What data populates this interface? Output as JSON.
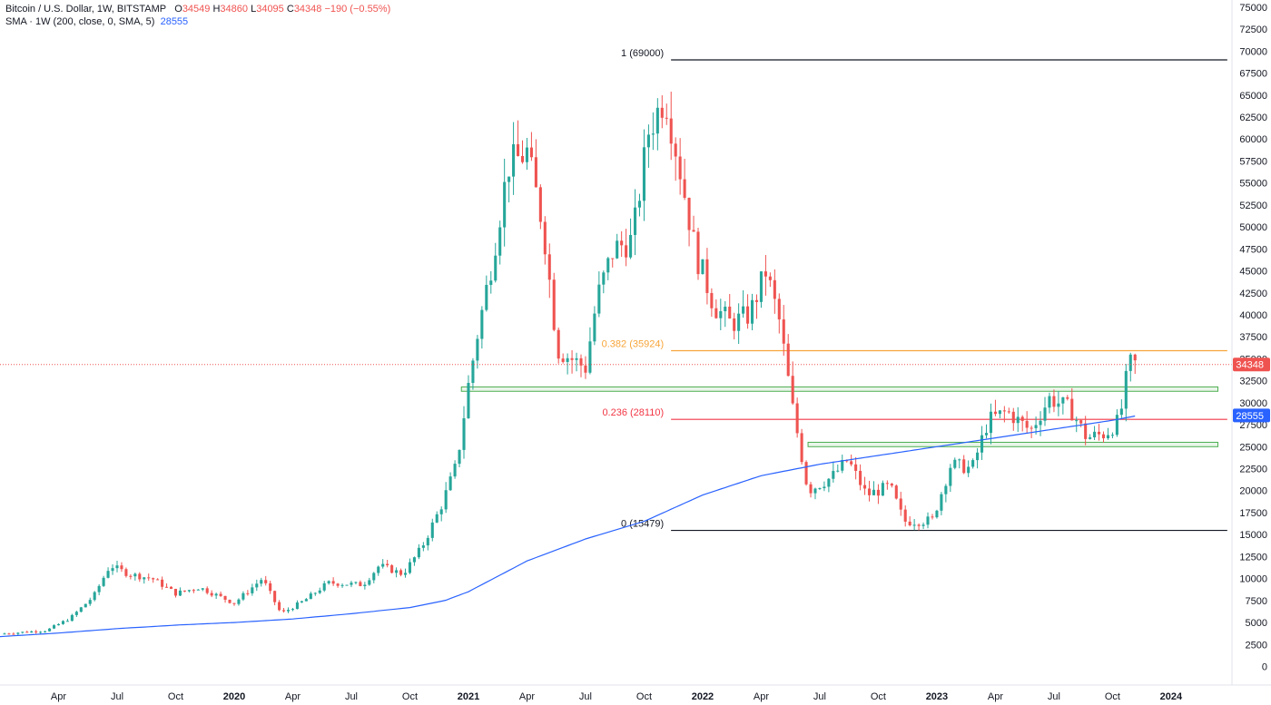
{
  "legend": {
    "symbol": "Bitcoin / U.S. Dollar, 1W, BITSTAMP",
    "open_label": "O",
    "open": "34549",
    "high_label": "H",
    "high": "34860",
    "low_label": "L",
    "low": "34095",
    "close_label": "C",
    "close": "34348",
    "change": "−190 (−0.55%)",
    "sma_label": "SMA · 1W (200, close, 0, SMA, 5)",
    "sma_value": "28555"
  },
  "badges": {
    "price": "34348",
    "sma": "28555"
  },
  "colors": {
    "up": "#26a69a",
    "down": "#ef5350",
    "sma": "#2962ff",
    "fib_0382": "#f7a539",
    "fib_0236": "#f23645",
    "fib_edge": "#131722",
    "zone": "#4caf50",
    "price_line": "#ef5350"
  },
  "chart_data": {
    "type": "candlestick",
    "ylim": [
      -1000,
      76500
    ],
    "y_ticks": [
      0,
      2500,
      5000,
      7500,
      10000,
      12500,
      15000,
      17500,
      20000,
      22500,
      25000,
      27500,
      30000,
      32500,
      35000,
      37500,
      40000,
      42500,
      45000,
      47500,
      50000,
      52500,
      55000,
      57500,
      60000,
      62500,
      65000,
      67500,
      70000,
      72500,
      75000
    ],
    "x_ticks": [
      {
        "label": "Apr",
        "t": 2019.25,
        "bold": false
      },
      {
        "label": "Jul",
        "t": 2019.5,
        "bold": false
      },
      {
        "label": "Oct",
        "t": 2019.75,
        "bold": false
      },
      {
        "label": "2020",
        "t": 2020.0,
        "bold": true
      },
      {
        "label": "Apr",
        "t": 2020.25,
        "bold": false
      },
      {
        "label": "Jul",
        "t": 2020.5,
        "bold": false
      },
      {
        "label": "Oct",
        "t": 2020.75,
        "bold": false
      },
      {
        "label": "2021",
        "t": 2021.0,
        "bold": true
      },
      {
        "label": "Apr",
        "t": 2021.25,
        "bold": false
      },
      {
        "label": "Jul",
        "t": 2021.5,
        "bold": false
      },
      {
        "label": "Oct",
        "t": 2021.75,
        "bold": false
      },
      {
        "label": "2022",
        "t": 2022.0,
        "bold": true
      },
      {
        "label": "Apr",
        "t": 2022.25,
        "bold": false
      },
      {
        "label": "Jul",
        "t": 2022.5,
        "bold": false
      },
      {
        "label": "Oct",
        "t": 2022.75,
        "bold": false
      },
      {
        "label": "2023",
        "t": 2023.0,
        "bold": true
      },
      {
        "label": "Apr",
        "t": 2023.25,
        "bold": false
      },
      {
        "label": "Jul",
        "t": 2023.5,
        "bold": false
      },
      {
        "label": "Oct",
        "t": 2023.75,
        "bold": false
      },
      {
        "label": "2024",
        "t": 2024.0,
        "bold": true
      }
    ],
    "fib_levels": [
      {
        "label": "1 (69000)",
        "value": 69000,
        "color": "#131722"
      },
      {
        "label": "0.382 (35924)",
        "value": 35924,
        "color": "#f7a539"
      },
      {
        "label": "0.236 (28110)",
        "value": 28110,
        "color": "#f23645"
      },
      {
        "label": "0 (15479)",
        "value": 15479,
        "color": "#131722"
      }
    ],
    "fib_start_t": 2021.865,
    "fib_end_t": 2024.24,
    "zones": [
      {
        "t_start": 2020.97,
        "t_end": 2024.2,
        "low": 31300,
        "high": 31800
      },
      {
        "t_start": 2022.45,
        "t_end": 2024.2,
        "low": 25000,
        "high": 25500
      }
    ],
    "current_price": 34348,
    "sma_anchors": [
      {
        "t": 2019.0,
        "v": 3400
      },
      {
        "t": 2019.25,
        "v": 3800
      },
      {
        "t": 2019.5,
        "v": 4300
      },
      {
        "t": 2019.75,
        "v": 4700
      },
      {
        "t": 2020.0,
        "v": 5000
      },
      {
        "t": 2020.25,
        "v": 5400
      },
      {
        "t": 2020.5,
        "v": 6000
      },
      {
        "t": 2020.75,
        "v": 6700
      },
      {
        "t": 2020.9,
        "v": 7500
      },
      {
        "t": 2021.0,
        "v": 8500
      },
      {
        "t": 2021.25,
        "v": 12000
      },
      {
        "t": 2021.5,
        "v": 14500
      },
      {
        "t": 2021.75,
        "v": 16500
      },
      {
        "t": 2022.0,
        "v": 19500
      },
      {
        "t": 2022.25,
        "v": 21700
      },
      {
        "t": 2022.5,
        "v": 23000
      },
      {
        "t": 2022.75,
        "v": 24000
      },
      {
        "t": 2023.0,
        "v": 25000
      },
      {
        "t": 2023.25,
        "v": 26000
      },
      {
        "t": 2023.5,
        "v": 27000
      },
      {
        "t": 2023.75,
        "v": 28000
      },
      {
        "t": 2023.86,
        "v": 28555
      }
    ],
    "close_anchors": [
      {
        "t": 2019.0,
        "v": 3700
      },
      {
        "t": 2019.1,
        "v": 3900
      },
      {
        "t": 2019.2,
        "v": 4100
      },
      {
        "t": 2019.3,
        "v": 5500
      },
      {
        "t": 2019.4,
        "v": 8000
      },
      {
        "t": 2019.47,
        "v": 11500
      },
      {
        "t": 2019.55,
        "v": 10500
      },
      {
        "t": 2019.65,
        "v": 10000
      },
      {
        "t": 2019.75,
        "v": 8300
      },
      {
        "t": 2019.85,
        "v": 9000
      },
      {
        "t": 2020.0,
        "v": 7200
      },
      {
        "t": 2020.12,
        "v": 10000
      },
      {
        "t": 2020.2,
        "v": 6000
      },
      {
        "t": 2020.3,
        "v": 7500
      },
      {
        "t": 2020.4,
        "v": 9500
      },
      {
        "t": 2020.55,
        "v": 9300
      },
      {
        "t": 2020.62,
        "v": 11500
      },
      {
        "t": 2020.72,
        "v": 10500
      },
      {
        "t": 2020.8,
        "v": 13500
      },
      {
        "t": 2020.88,
        "v": 18000
      },
      {
        "t": 2020.95,
        "v": 23000
      },
      {
        "t": 2021.0,
        "v": 32000
      },
      {
        "t": 2021.04,
        "v": 38000
      },
      {
        "t": 2021.1,
        "v": 46000
      },
      {
        "t": 2021.17,
        "v": 57000
      },
      {
        "t": 2021.25,
        "v": 58500
      },
      {
        "t": 2021.32,
        "v": 50000
      },
      {
        "t": 2021.38,
        "v": 36000
      },
      {
        "t": 2021.5,
        "v": 34000
      },
      {
        "t": 2021.55,
        "v": 42000
      },
      {
        "t": 2021.62,
        "v": 47500
      },
      {
        "t": 2021.7,
        "v": 48500
      },
      {
        "t": 2021.77,
        "v": 61000
      },
      {
        "t": 2021.84,
        "v": 65000
      },
      {
        "t": 2021.9,
        "v": 57000
      },
      {
        "t": 2021.97,
        "v": 47000
      },
      {
        "t": 2022.05,
        "v": 41000
      },
      {
        "t": 2022.12,
        "v": 39000
      },
      {
        "t": 2022.2,
        "v": 40000
      },
      {
        "t": 2022.27,
        "v": 45000
      },
      {
        "t": 2022.33,
        "v": 39000
      },
      {
        "t": 2022.38,
        "v": 30000
      },
      {
        "t": 2022.45,
        "v": 20000
      },
      {
        "t": 2022.55,
        "v": 21500
      },
      {
        "t": 2022.62,
        "v": 23500
      },
      {
        "t": 2022.7,
        "v": 19500
      },
      {
        "t": 2022.8,
        "v": 20500
      },
      {
        "t": 2022.86,
        "v": 16500
      },
      {
        "t": 2022.98,
        "v": 16600
      },
      {
        "t": 2023.06,
        "v": 23000
      },
      {
        "t": 2023.15,
        "v": 22500
      },
      {
        "t": 2023.22,
        "v": 28000
      },
      {
        "t": 2023.3,
        "v": 29000
      },
      {
        "t": 2023.4,
        "v": 26800
      },
      {
        "t": 2023.48,
        "v": 30500
      },
      {
        "t": 2023.57,
        "v": 29300
      },
      {
        "t": 2023.64,
        "v": 26000
      },
      {
        "t": 2023.72,
        "v": 26500
      },
      {
        "t": 2023.78,
        "v": 28000
      },
      {
        "t": 2023.82,
        "v": 34500
      },
      {
        "t": 2023.86,
        "v": 34348
      }
    ]
  }
}
